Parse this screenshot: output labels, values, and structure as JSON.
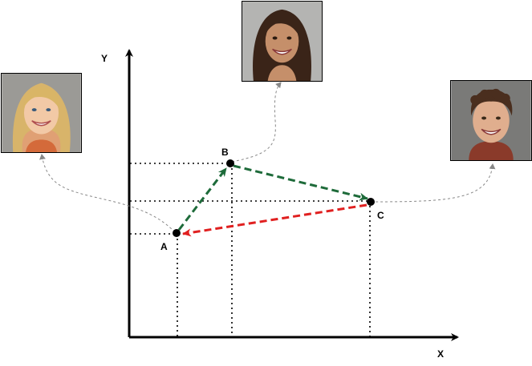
{
  "axes": {
    "x_label": "X",
    "y_label": "Y"
  },
  "points": [
    {
      "id": "A",
      "label": "A"
    },
    {
      "id": "B",
      "label": "B"
    },
    {
      "id": "C",
      "label": "C"
    }
  ],
  "colors": {
    "forward_arrow": "#1e6b3a",
    "return_arrow": "#e02020",
    "axis": "#000000",
    "guide": "#000000",
    "connector": "#888888"
  },
  "photos": [
    {
      "id": "photo-a",
      "point": "A",
      "subject": "young-blonde-girl-smiling"
    },
    {
      "id": "photo-b",
      "point": "B",
      "subject": "young-woman-dark-hair-smiling"
    },
    {
      "id": "photo-c",
      "point": "C",
      "subject": "young-man-curly-hair-smiling"
    }
  ]
}
